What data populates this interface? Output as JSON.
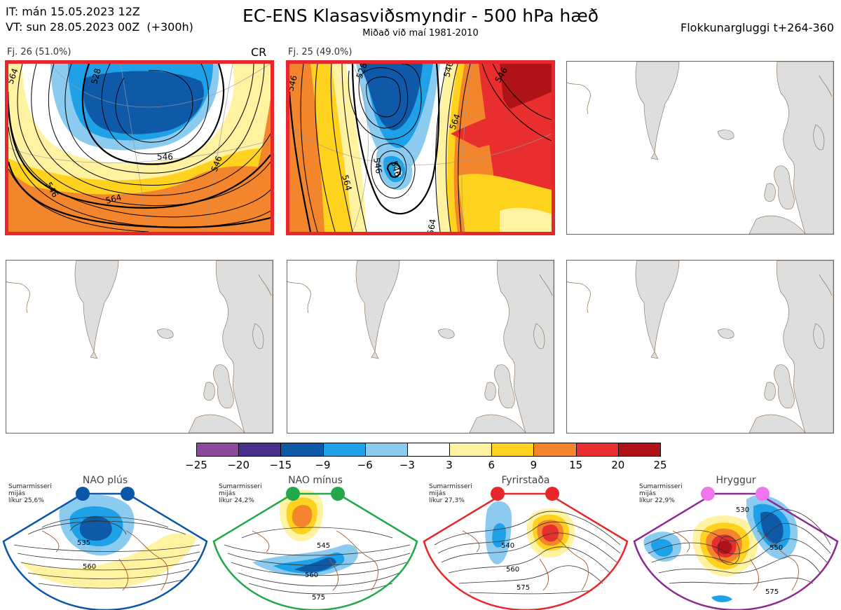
{
  "header": {
    "it_line": "IT: mán 15.05.2023 12Z",
    "vt_line": "VT: sun 28.05.2023 00Z  (+300h)",
    "title": "EC-ENS Klasasviðsmyndir - 500 hPa hæð",
    "subtitle": "Miðað við maí 1981-2010",
    "window": "Flokkunargluggi t+264-360"
  },
  "panels": [
    {
      "label": "Fj. 26 (51.0%)",
      "tag": "CR",
      "contours": [
        "564",
        "546",
        "528",
        "546",
        "564",
        "546"
      ]
    },
    {
      "label": "Fj. 25 (49.0%)",
      "contours": [
        "546",
        "528",
        "546",
        "564",
        "546",
        "564",
        "546",
        "564",
        "546"
      ]
    }
  ],
  "colorbar": {
    "colors": [
      "#8b4a9e",
      "#4b2f8c",
      "#0f5aa8",
      "#1ea1e6",
      "#8ccbf0",
      "#ffffff",
      "#fff3a1",
      "#ffd21f",
      "#f3852d",
      "#e82e2e",
      "#b01317"
    ],
    "labels": [
      "−25",
      "−20",
      "−15",
      "−9",
      "−6",
      "−3",
      "3",
      "6",
      "9",
      "15",
      "20",
      "25"
    ]
  },
  "regimes": [
    {
      "name": "NAO plús",
      "season": "Sumarmisseri",
      "mean": "mijás",
      "prob": "líkur 25,6%",
      "color": "#0a56a8",
      "contours": [
        "535",
        "560"
      ]
    },
    {
      "name": "NAO mínus",
      "season": "Sumarmisseri",
      "mean": "mijás",
      "prob": "líkur 24,2%",
      "color": "#22a84a",
      "contours": [
        "545",
        "560",
        "575"
      ]
    },
    {
      "name": "Fyrirstaða",
      "season": "Sumarmisseri",
      "mean": "mijás",
      "prob": "líkur 27,3%",
      "color": "#e8262b",
      "contours": [
        "540",
        "560",
        "575"
      ]
    },
    {
      "name": "Hryggur",
      "season": "Sumarmisseri",
      "mean": "mijás",
      "prob": "líkur 22,9%",
      "color": "#8d2a92",
      "contours": [
        "530",
        "550",
        "575"
      ]
    }
  ]
}
